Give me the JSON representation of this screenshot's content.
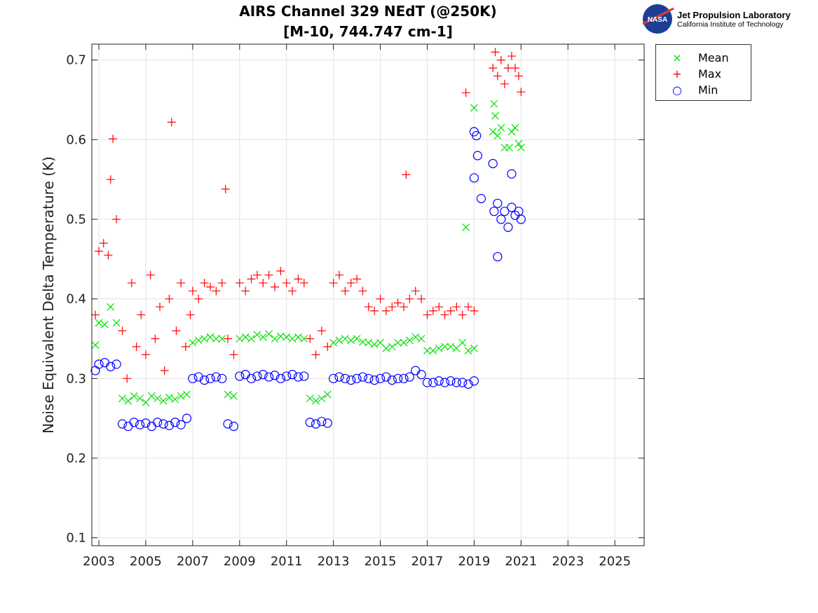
{
  "chart_data": {
    "type": "scatter",
    "title": [
      "AIRS Channel 329 NEdT (@250K)",
      "[M-10, 744.747 cm-1]"
    ],
    "xlabel": "",
    "ylabel": "Noise Equivalent Delta Temperature (K)",
    "xlim": [
      2002.7,
      2026.25
    ],
    "ylim": [
      0.09,
      0.72
    ],
    "xticks": [
      2003,
      2005,
      2007,
      2009,
      2011,
      2013,
      2015,
      2017,
      2019,
      2021,
      2023,
      2025
    ],
    "yticks": [
      0.1,
      0.2,
      0.3,
      0.4,
      0.5,
      0.6,
      0.7
    ],
    "grid": true,
    "legend_position": "outside-top-right",
    "series": [
      {
        "name": "Mean",
        "color": "#00e000",
        "marker": "x",
        "points": [
          [
            2002.85,
            0.342
          ],
          [
            2003.0,
            0.37
          ],
          [
            2003.25,
            0.368
          ],
          [
            2003.5,
            0.39
          ],
          [
            2003.75,
            0.37
          ],
          [
            2004.0,
            0.275
          ],
          [
            2004.25,
            0.272
          ],
          [
            2004.5,
            0.278
          ],
          [
            2004.75,
            0.275
          ],
          [
            2005.0,
            0.27
          ],
          [
            2005.25,
            0.278
          ],
          [
            2005.5,
            0.275
          ],
          [
            2005.75,
            0.272
          ],
          [
            2006.0,
            0.276
          ],
          [
            2006.25,
            0.274
          ],
          [
            2006.5,
            0.278
          ],
          [
            2006.75,
            0.28
          ],
          [
            2007.0,
            0.345
          ],
          [
            2007.25,
            0.348
          ],
          [
            2007.5,
            0.35
          ],
          [
            2007.75,
            0.352
          ],
          [
            2008.0,
            0.35
          ],
          [
            2008.25,
            0.35
          ],
          [
            2008.5,
            0.28
          ],
          [
            2008.75,
            0.278
          ],
          [
            2009.0,
            0.35
          ],
          [
            2009.25,
            0.352
          ],
          [
            2009.5,
            0.35
          ],
          [
            2009.75,
            0.355
          ],
          [
            2010.0,
            0.352
          ],
          [
            2010.25,
            0.356
          ],
          [
            2010.5,
            0.35
          ],
          [
            2010.75,
            0.353
          ],
          [
            2011.0,
            0.352
          ],
          [
            2011.25,
            0.35
          ],
          [
            2011.5,
            0.352
          ],
          [
            2011.75,
            0.35
          ],
          [
            2012.0,
            0.275
          ],
          [
            2012.25,
            0.272
          ],
          [
            2012.5,
            0.275
          ],
          [
            2012.75,
            0.28
          ],
          [
            2013.0,
            0.345
          ],
          [
            2013.25,
            0.348
          ],
          [
            2013.5,
            0.35
          ],
          [
            2013.75,
            0.348
          ],
          [
            2014.0,
            0.35
          ],
          [
            2014.25,
            0.346
          ],
          [
            2014.5,
            0.345
          ],
          [
            2014.75,
            0.343
          ],
          [
            2015.0,
            0.345
          ],
          [
            2015.25,
            0.338
          ],
          [
            2015.5,
            0.34
          ],
          [
            2015.75,
            0.345
          ],
          [
            2016.0,
            0.345
          ],
          [
            2016.25,
            0.348
          ],
          [
            2016.5,
            0.352
          ],
          [
            2016.75,
            0.35
          ],
          [
            2017.0,
            0.335
          ],
          [
            2017.25,
            0.335
          ],
          [
            2017.5,
            0.338
          ],
          [
            2017.75,
            0.34
          ],
          [
            2018.0,
            0.34
          ],
          [
            2018.25,
            0.338
          ],
          [
            2018.5,
            0.345
          ],
          [
            2018.75,
            0.335
          ],
          [
            2019.0,
            0.338
          ],
          [
            2019.0,
            0.64
          ],
          [
            2018.65,
            0.49
          ],
          [
            2019.8,
            0.61
          ],
          [
            2019.85,
            0.645
          ],
          [
            2019.9,
            0.63
          ],
          [
            2020.0,
            0.605
          ],
          [
            2020.15,
            0.615
          ],
          [
            2020.3,
            0.59
          ],
          [
            2020.5,
            0.59
          ],
          [
            2020.6,
            0.61
          ],
          [
            2020.75,
            0.615
          ],
          [
            2020.9,
            0.595
          ],
          [
            2021.0,
            0.59
          ]
        ]
      },
      {
        "name": "Max",
        "color": "#ff0000",
        "marker": "+",
        "points": [
          [
            2002.85,
            0.38
          ],
          [
            2003.0,
            0.46
          ],
          [
            2003.2,
            0.47
          ],
          [
            2003.4,
            0.455
          ],
          [
            2003.5,
            0.55
          ],
          [
            2003.6,
            0.601
          ],
          [
            2003.75,
            0.5
          ],
          [
            2004.0,
            0.36
          ],
          [
            2004.2,
            0.3
          ],
          [
            2004.4,
            0.42
          ],
          [
            2004.6,
            0.34
          ],
          [
            2004.8,
            0.38
          ],
          [
            2005.0,
            0.33
          ],
          [
            2005.2,
            0.43
          ],
          [
            2005.4,
            0.35
          ],
          [
            2005.6,
            0.39
          ],
          [
            2005.8,
            0.31
          ],
          [
            2006.0,
            0.4
          ],
          [
            2006.1,
            0.622
          ],
          [
            2006.3,
            0.36
          ],
          [
            2006.5,
            0.42
          ],
          [
            2006.7,
            0.34
          ],
          [
            2006.9,
            0.38
          ],
          [
            2007.0,
            0.41
          ],
          [
            2007.25,
            0.4
          ],
          [
            2007.5,
            0.42
          ],
          [
            2007.75,
            0.415
          ],
          [
            2008.0,
            0.41
          ],
          [
            2008.25,
            0.42
          ],
          [
            2008.4,
            0.538
          ],
          [
            2008.5,
            0.35
          ],
          [
            2008.75,
            0.33
          ],
          [
            2009.0,
            0.42
          ],
          [
            2009.25,
            0.41
          ],
          [
            2009.5,
            0.425
          ],
          [
            2009.75,
            0.43
          ],
          [
            2010.0,
            0.42
          ],
          [
            2010.25,
            0.43
          ],
          [
            2010.5,
            0.415
          ],
          [
            2010.75,
            0.435
          ],
          [
            2011.0,
            0.42
          ],
          [
            2011.25,
            0.41
          ],
          [
            2011.5,
            0.425
          ],
          [
            2011.75,
            0.42
          ],
          [
            2012.0,
            0.35
          ],
          [
            2012.25,
            0.33
          ],
          [
            2012.5,
            0.36
          ],
          [
            2012.75,
            0.34
          ],
          [
            2013.0,
            0.42
          ],
          [
            2013.25,
            0.43
          ],
          [
            2013.5,
            0.41
          ],
          [
            2013.75,
            0.42
          ],
          [
            2014.0,
            0.425
          ],
          [
            2014.25,
            0.41
          ],
          [
            2014.5,
            0.39
          ],
          [
            2014.75,
            0.385
          ],
          [
            2015.0,
            0.4
          ],
          [
            2015.25,
            0.385
          ],
          [
            2015.5,
            0.39
          ],
          [
            2015.75,
            0.395
          ],
          [
            2016.0,
            0.39
          ],
          [
            2016.1,
            0.556
          ],
          [
            2016.25,
            0.4
          ],
          [
            2016.5,
            0.41
          ],
          [
            2016.75,
            0.4
          ],
          [
            2017.0,
            0.38
          ],
          [
            2017.25,
            0.385
          ],
          [
            2017.5,
            0.39
          ],
          [
            2017.75,
            0.38
          ],
          [
            2018.0,
            0.385
          ],
          [
            2018.25,
            0.39
          ],
          [
            2018.5,
            0.38
          ],
          [
            2018.65,
            0.659
          ],
          [
            2018.75,
            0.39
          ],
          [
            2019.0,
            0.385
          ],
          [
            2019.8,
            0.69
          ],
          [
            2019.9,
            0.71
          ],
          [
            2020.0,
            0.68
          ],
          [
            2020.15,
            0.7
          ],
          [
            2020.3,
            0.67
          ],
          [
            2020.45,
            0.69
          ],
          [
            2020.6,
            0.705
          ],
          [
            2020.75,
            0.69
          ],
          [
            2020.9,
            0.68
          ],
          [
            2021.0,
            0.66
          ]
        ]
      },
      {
        "name": "Min",
        "color": "#0000ff",
        "marker": "o",
        "points": [
          [
            2002.85,
            0.31
          ],
          [
            2003.0,
            0.318
          ],
          [
            2003.25,
            0.32
          ],
          [
            2003.5,
            0.315
          ],
          [
            2003.75,
            0.318
          ],
          [
            2004.0,
            0.243
          ],
          [
            2004.25,
            0.24
          ],
          [
            2004.5,
            0.245
          ],
          [
            2004.75,
            0.242
          ],
          [
            2005.0,
            0.244
          ],
          [
            2005.25,
            0.24
          ],
          [
            2005.5,
            0.245
          ],
          [
            2005.75,
            0.243
          ],
          [
            2006.0,
            0.241
          ],
          [
            2006.25,
            0.245
          ],
          [
            2006.5,
            0.242
          ],
          [
            2006.75,
            0.25
          ],
          [
            2007.0,
            0.3
          ],
          [
            2007.25,
            0.302
          ],
          [
            2007.5,
            0.298
          ],
          [
            2007.75,
            0.3
          ],
          [
            2008.0,
            0.302
          ],
          [
            2008.25,
            0.3
          ],
          [
            2008.5,
            0.243
          ],
          [
            2008.75,
            0.24
          ],
          [
            2009.0,
            0.303
          ],
          [
            2009.25,
            0.305
          ],
          [
            2009.5,
            0.3
          ],
          [
            2009.75,
            0.303
          ],
          [
            2010.0,
            0.305
          ],
          [
            2010.25,
            0.302
          ],
          [
            2010.5,
            0.304
          ],
          [
            2010.75,
            0.3
          ],
          [
            2011.0,
            0.303
          ],
          [
            2011.25,
            0.305
          ],
          [
            2011.5,
            0.302
          ],
          [
            2011.75,
            0.303
          ],
          [
            2012.0,
            0.245
          ],
          [
            2012.25,
            0.243
          ],
          [
            2012.5,
            0.246
          ],
          [
            2012.75,
            0.244
          ],
          [
            2013.0,
            0.3
          ],
          [
            2013.25,
            0.302
          ],
          [
            2013.5,
            0.3
          ],
          [
            2013.75,
            0.298
          ],
          [
            2014.0,
            0.3
          ],
          [
            2014.25,
            0.302
          ],
          [
            2014.5,
            0.3
          ],
          [
            2014.75,
            0.298
          ],
          [
            2015.0,
            0.3
          ],
          [
            2015.25,
            0.302
          ],
          [
            2015.5,
            0.298
          ],
          [
            2015.75,
            0.3
          ],
          [
            2016.0,
            0.3
          ],
          [
            2016.25,
            0.302
          ],
          [
            2016.5,
            0.31
          ],
          [
            2016.75,
            0.305
          ],
          [
            2017.0,
            0.295
          ],
          [
            2017.25,
            0.295
          ],
          [
            2017.5,
            0.297
          ],
          [
            2017.75,
            0.295
          ],
          [
            2018.0,
            0.297
          ],
          [
            2018.25,
            0.295
          ],
          [
            2018.5,
            0.295
          ],
          [
            2018.75,
            0.293
          ],
          [
            2019.0,
            0.297
          ],
          [
            2019.0,
            0.61
          ],
          [
            2019.1,
            0.605
          ],
          [
            2019.15,
            0.58
          ],
          [
            2019.0,
            0.552
          ],
          [
            2019.3,
            0.526
          ],
          [
            2019.8,
            0.57
          ],
          [
            2020.0,
            0.453
          ],
          [
            2020.6,
            0.557
          ],
          [
            2019.85,
            0.51
          ],
          [
            2020.0,
            0.52
          ],
          [
            2020.15,
            0.5
          ],
          [
            2020.3,
            0.51
          ],
          [
            2020.45,
            0.49
          ],
          [
            2020.6,
            0.515
          ],
          [
            2020.75,
            0.505
          ],
          [
            2020.9,
            0.51
          ],
          [
            2021.0,
            0.5
          ]
        ]
      }
    ]
  },
  "logo": {
    "line1": "Jet Propulsion Laboratory",
    "line2": "California Institute of Technology",
    "badge": "NASA"
  }
}
